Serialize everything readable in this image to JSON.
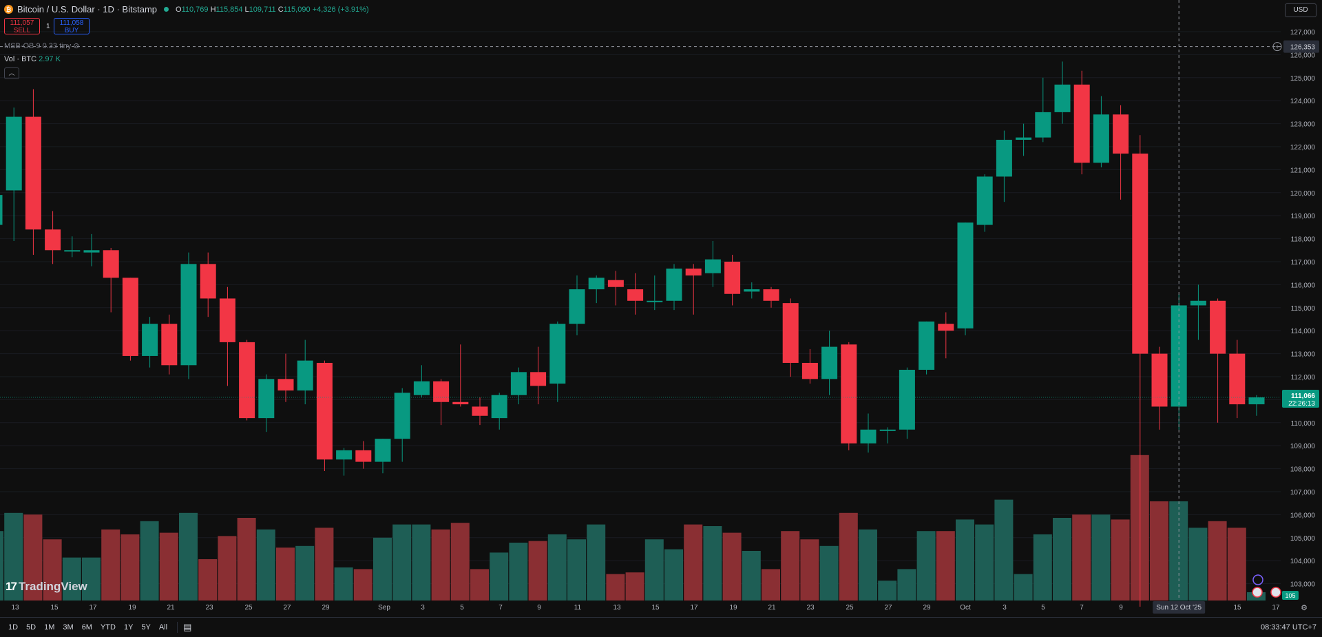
{
  "header": {
    "coin_icon": "bitcoin-icon",
    "title": "Bitcoin / U.S. Dollar · 1D · Bitstamp",
    "open_label": "O",
    "open": "110,769",
    "high_label": "H",
    "high": "115,854",
    "low_label": "L",
    "low": "109,711",
    "close_label": "C",
    "close": "115,090",
    "change": "+4,326 (+3.91%)"
  },
  "trade": {
    "sell_price": "111,057",
    "sell_label": "SELL",
    "buy_price": "111,058",
    "buy_label": "BUY",
    "spread": "1"
  },
  "indicators": {
    "msb": "MSB-OB 9 0.33 tiny",
    "vol_label": "Vol · BTC",
    "vol_value": "2.97 K"
  },
  "currency": "USD",
  "crosshair": {
    "price": "126,353",
    "date": "Sun 12 Oct '25"
  },
  "last_price": {
    "price": "111,066",
    "countdown": "22:26:13",
    "volume": "105"
  },
  "price_axis": [
    "127,000",
    "126,000",
    "125,000",
    "124,000",
    "123,000",
    "122,000",
    "121,000",
    "120,000",
    "119,000",
    "118,000",
    "117,000",
    "116,000",
    "115,000",
    "114,000",
    "113,000",
    "112,000",
    "111,000",
    "110,000",
    "109,000",
    "108,000",
    "107,000",
    "106,000",
    "105,000",
    "104,000",
    "103,000"
  ],
  "time_axis": [
    "13",
    "15",
    "17",
    "19",
    "21",
    "23",
    "25",
    "27",
    "29",
    "Sep",
    "3",
    "5",
    "7",
    "9",
    "11",
    "13",
    "15",
    "17",
    "19",
    "21",
    "23",
    "25",
    "27",
    "29",
    "Oct",
    "3",
    "5",
    "7",
    "9",
    "15",
    "17"
  ],
  "timeframes": [
    "1D",
    "5D",
    "1M",
    "3M",
    "6M",
    "YTD",
    "1Y",
    "5Y",
    "All"
  ],
  "clock": "08:33:47 UTC+7",
  "branding": "TradingView",
  "colors": {
    "up": "#089981",
    "down": "#f23645",
    "vol_up": "#1e5e55",
    "vol_down": "#8a2f33",
    "background": "#0f0f0f",
    "text": "#d1d4dc"
  },
  "chart_data": {
    "type": "candlestick",
    "symbol": "BTCUSD",
    "interval": "1D",
    "ylim": [
      103000,
      127000
    ],
    "candles": [
      {
        "o": 118600,
        "h": 119900,
        "l": 118300,
        "c": 119900
      },
      {
        "o": 120100,
        "h": 123700,
        "l": 117900,
        "c": 123300
      },
      {
        "o": 123300,
        "h": 124500,
        "l": 117300,
        "c": 118400
      },
      {
        "o": 118400,
        "h": 119200,
        "l": 116900,
        "c": 117500
      },
      {
        "o": 117500,
        "h": 118100,
        "l": 117200,
        "c": 117500
      },
      {
        "o": 117400,
        "h": 118200,
        "l": 116800,
        "c": 117500
      },
      {
        "o": 117500,
        "h": 117600,
        "l": 114800,
        "c": 116300
      },
      {
        "o": 116300,
        "h": 116300,
        "l": 112700,
        "c": 112900
      },
      {
        "o": 112900,
        "h": 114600,
        "l": 112400,
        "c": 114300
      },
      {
        "o": 114300,
        "h": 114700,
        "l": 112100,
        "c": 112500
      },
      {
        "o": 112500,
        "h": 117400,
        "l": 111900,
        "c": 116900
      },
      {
        "o": 116900,
        "h": 117400,
        "l": 114600,
        "c": 115400
      },
      {
        "o": 115400,
        "h": 115900,
        "l": 111600,
        "c": 113500
      },
      {
        "o": 113500,
        "h": 113600,
        "l": 110100,
        "c": 110200
      },
      {
        "o": 110200,
        "h": 112100,
        "l": 109600,
        "c": 111900
      },
      {
        "o": 111900,
        "h": 113000,
        "l": 110900,
        "c": 111400
      },
      {
        "o": 111400,
        "h": 113600,
        "l": 110800,
        "c": 112700
      },
      {
        "o": 112600,
        "h": 112700,
        "l": 107900,
        "c": 108400
      },
      {
        "o": 108400,
        "h": 108900,
        "l": 107700,
        "c": 108800
      },
      {
        "o": 108800,
        "h": 109200,
        "l": 108000,
        "c": 108300
      },
      {
        "o": 108300,
        "h": 109300,
        "l": 107800,
        "c": 109300
      },
      {
        "o": 109300,
        "h": 111500,
        "l": 108300,
        "c": 111300
      },
      {
        "o": 111200,
        "h": 112500,
        "l": 111100,
        "c": 111800
      },
      {
        "o": 111800,
        "h": 111900,
        "l": 109900,
        "c": 110900
      },
      {
        "o": 110900,
        "h": 113400,
        "l": 110700,
        "c": 110800
      },
      {
        "o": 110700,
        "h": 111100,
        "l": 109900,
        "c": 110300
      },
      {
        "o": 110200,
        "h": 111300,
        "l": 109700,
        "c": 111200
      },
      {
        "o": 111200,
        "h": 112400,
        "l": 110800,
        "c": 112200
      },
      {
        "o": 112200,
        "h": 113300,
        "l": 110800,
        "c": 111600
      },
      {
        "o": 111700,
        "h": 114400,
        "l": 110900,
        "c": 114300
      },
      {
        "o": 114300,
        "h": 116400,
        "l": 113800,
        "c": 115800
      },
      {
        "o": 115800,
        "h": 116400,
        "l": 115200,
        "c": 116300
      },
      {
        "o": 116200,
        "h": 116600,
        "l": 115100,
        "c": 115900
      },
      {
        "o": 115800,
        "h": 116500,
        "l": 114700,
        "c": 115300
      },
      {
        "o": 115300,
        "h": 116400,
        "l": 114900,
        "c": 115300
      },
      {
        "o": 115300,
        "h": 116900,
        "l": 114900,
        "c": 116700
      },
      {
        "o": 116700,
        "h": 116900,
        "l": 114700,
        "c": 116400
      },
      {
        "o": 116500,
        "h": 117900,
        "l": 115900,
        "c": 117100
      },
      {
        "o": 117000,
        "h": 117300,
        "l": 115100,
        "c": 115600
      },
      {
        "o": 115700,
        "h": 116100,
        "l": 115400,
        "c": 115800
      },
      {
        "o": 115800,
        "h": 115900,
        "l": 115000,
        "c": 115300
      },
      {
        "o": 115200,
        "h": 115400,
        "l": 112000,
        "c": 112600
      },
      {
        "o": 112600,
        "h": 113200,
        "l": 111700,
        "c": 111900
      },
      {
        "o": 111900,
        "h": 114000,
        "l": 111200,
        "c": 113300
      },
      {
        "o": 113400,
        "h": 113500,
        "l": 108800,
        "c": 109100
      },
      {
        "o": 109100,
        "h": 110400,
        "l": 108700,
        "c": 109700
      },
      {
        "o": 109700,
        "h": 109800,
        "l": 109100,
        "c": 109700
      },
      {
        "o": 109700,
        "h": 112400,
        "l": 109300,
        "c": 112300
      },
      {
        "o": 112300,
        "h": 114400,
        "l": 112100,
        "c": 114400
      },
      {
        "o": 114300,
        "h": 114800,
        "l": 112800,
        "c": 114000
      },
      {
        "o": 114100,
        "h": 118700,
        "l": 113800,
        "c": 118700
      },
      {
        "o": 118600,
        "h": 120800,
        "l": 118300,
        "c": 120700
      },
      {
        "o": 120700,
        "h": 122700,
        "l": 119600,
        "c": 122300
      },
      {
        "o": 122300,
        "h": 123000,
        "l": 121600,
        "c": 122400
      },
      {
        "o": 122400,
        "h": 125000,
        "l": 122200,
        "c": 123500
      },
      {
        "o": 123500,
        "h": 125700,
        "l": 123000,
        "c": 124700
      },
      {
        "o": 124700,
        "h": 125300,
        "l": 120800,
        "c": 121300
      },
      {
        "o": 121300,
        "h": 124200,
        "l": 121100,
        "c": 123400
      },
      {
        "o": 123400,
        "h": 123800,
        "l": 119700,
        "c": 121700
      },
      {
        "o": 121700,
        "h": 122500,
        "l": 102000,
        "c": 113000
      },
      {
        "o": 113000,
        "h": 113300,
        "l": 109700,
        "c": 110700
      },
      {
        "o": 110700,
        "h": 115600,
        "l": 109700,
        "c": 115100
      },
      {
        "o": 115100,
        "h": 116000,
        "l": 113600,
        "c": 115300
      },
      {
        "o": 115300,
        "h": 115400,
        "l": 110000,
        "c": 113000
      },
      {
        "o": 113000,
        "h": 113600,
        "l": 110200,
        "c": 110800
      },
      {
        "o": 110800,
        "h": 111200,
        "l": 110300,
        "c": 111100
      }
    ],
    "volumes": [
      4.2,
      5.3,
      5.2,
      3.7,
      2.6,
      2.6,
      4.3,
      4.0,
      4.8,
      4.1,
      5.3,
      2.5,
      3.9,
      5.0,
      4.3,
      3.2,
      3.3,
      4.4,
      2.0,
      1.9,
      3.8,
      4.6,
      4.6,
      4.3,
      4.7,
      1.9,
      2.9,
      3.5,
      3.6,
      4.0,
      3.7,
      4.6,
      1.6,
      1.7,
      3.7,
      3.1,
      4.6,
      4.5,
      4.1,
      3.0,
      1.9,
      4.2,
      3.7,
      3.3,
      5.3,
      4.3,
      1.2,
      1.9,
      4.2,
      4.2,
      4.9,
      4.6,
      6.1,
      1.6,
      4.0,
      5.0,
      5.2,
      5.2,
      4.9,
      8.8,
      6.0,
      6.0,
      4.4,
      4.8,
      4.4,
      0.5
    ]
  }
}
